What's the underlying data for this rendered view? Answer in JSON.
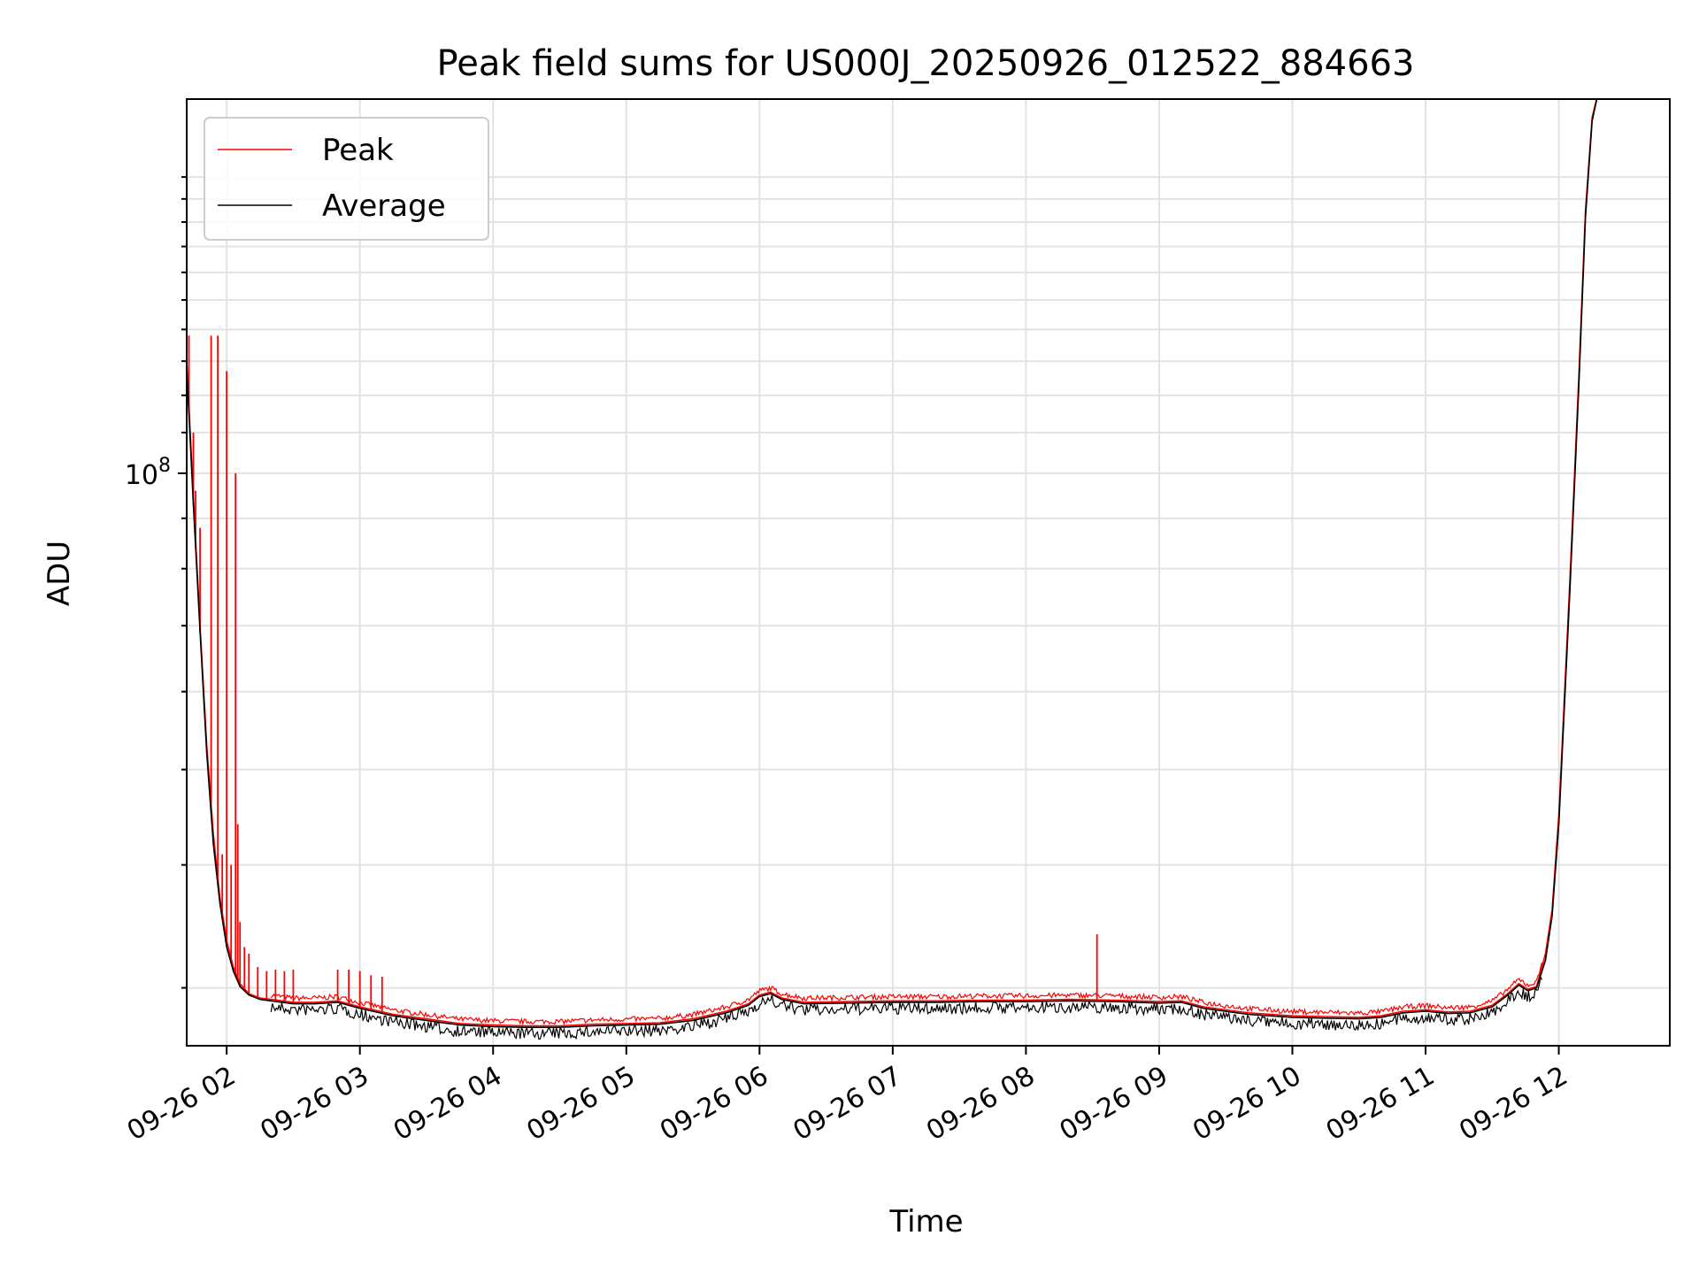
{
  "chart_data": {
    "type": "line",
    "title": "Peak field sums for US000J_20250926_012522_884663",
    "xlabel": "Time",
    "ylabel": "ADU",
    "yscale": "log",
    "grid": true,
    "legend_position": "top-left",
    "x_ticks": [
      "09-26 02",
      "09-26 03",
      "09-26 04",
      "09-26 05",
      "09-26 06",
      "09-26 07",
      "09-26 08",
      "09-26 09",
      "09-26 10",
      "09-26 11",
      "09-26 12"
    ],
    "y_ticks": [
      {
        "value": 100000000,
        "base": "10",
        "exp": "8"
      }
    ],
    "xlim": [
      "09-26 01:42",
      "09-26 12:50"
    ],
    "ylim": [
      26200000,
      240000000
    ],
    "series": [
      {
        "name": "Peak",
        "color": "#ff0000",
        "points": [
          [
            "09-26 01:42",
            130000000
          ],
          [
            "09-26 01:45",
            95000000
          ],
          [
            "09-26 01:48",
            70000000
          ],
          [
            "09-26 01:51",
            53000000
          ],
          [
            "09-26 01:54",
            43000000
          ],
          [
            "09-26 01:57",
            37000000
          ],
          [
            "09-26 02:00",
            33500000
          ],
          [
            "09-26 02:03",
            31500000
          ],
          [
            "09-26 02:06",
            30300000
          ],
          [
            "09-26 02:10",
            29600000
          ],
          [
            "09-26 02:15",
            29300000
          ],
          [
            "09-26 02:20",
            29200000
          ],
          [
            "09-26 02:30",
            29000000
          ],
          [
            "09-26 02:40",
            29000000
          ],
          [
            "09-26 02:50",
            29100000
          ],
          [
            "09-26 03:00",
            28700000
          ],
          [
            "09-26 03:15",
            28200000
          ],
          [
            "09-26 03:30",
            27900000
          ],
          [
            "09-26 03:45",
            27600000
          ],
          [
            "09-26 04:00",
            27500000
          ],
          [
            "09-26 04:15",
            27450000
          ],
          [
            "09-26 04:30",
            27450000
          ],
          [
            "09-26 04:45",
            27550000
          ],
          [
            "09-26 05:00",
            27600000
          ],
          [
            "09-26 05:15",
            27650000
          ],
          [
            "09-26 05:30",
            27900000
          ],
          [
            "09-26 05:45",
            28400000
          ],
          [
            "09-26 05:55",
            28900000
          ],
          [
            "09-26 06:00",
            29500000
          ],
          [
            "09-26 06:05",
            29700000
          ],
          [
            "09-26 06:10",
            29300000
          ],
          [
            "09-26 06:20",
            29000000
          ],
          [
            "09-26 06:40",
            29050000
          ],
          [
            "09-26 07:00",
            29100000
          ],
          [
            "09-26 07:20",
            29100000
          ],
          [
            "09-26 07:40",
            29150000
          ],
          [
            "09-26 08:00",
            29150000
          ],
          [
            "09-26 08:20",
            29200000
          ],
          [
            "09-26 08:40",
            29150000
          ],
          [
            "09-26 09:00",
            29050000
          ],
          [
            "09-26 09:10",
            29100000
          ],
          [
            "09-26 09:20",
            28700000
          ],
          [
            "09-26 09:40",
            28300000
          ],
          [
            "09-26 10:00",
            28100000
          ],
          [
            "09-26 10:15",
            28050000
          ],
          [
            "09-26 10:30",
            28000000
          ],
          [
            "09-26 10:40",
            28100000
          ],
          [
            "09-26 10:50",
            28400000
          ],
          [
            "09-26 11:00",
            28500000
          ],
          [
            "09-26 11:10",
            28350000
          ],
          [
            "09-26 11:20",
            28400000
          ],
          [
            "09-26 11:30",
            28800000
          ],
          [
            "09-26 11:37",
            29600000
          ],
          [
            "09-26 11:42",
            30300000
          ],
          [
            "09-26 11:46",
            29900000
          ],
          [
            "09-26 11:50",
            30100000
          ],
          [
            "09-26 11:54",
            32500000
          ],
          [
            "09-26 11:57",
            36000000
          ],
          [
            "09-26 12:00",
            45000000
          ],
          [
            "09-26 12:05",
            78000000
          ],
          [
            "09-26 12:09",
            125000000
          ],
          [
            "09-26 12:12",
            185000000
          ],
          [
            "09-26 12:15",
            230000000
          ],
          [
            "09-26 12:18",
            245000000
          ]
        ],
        "spikes": [
          [
            "09-26 01:43",
            138000000
          ],
          [
            "09-26 01:45",
            110000000
          ],
          [
            "09-26 01:46",
            96000000
          ],
          [
            "09-26 01:48",
            88000000
          ],
          [
            "09-26 01:53",
            138000000
          ],
          [
            "09-26 01:56",
            138000000
          ],
          [
            "09-26 01:58",
            41000000
          ],
          [
            "09-26 02:00",
            127000000
          ],
          [
            "09-26 02:02",
            40000000
          ],
          [
            "09-26 02:04",
            100000000
          ],
          [
            "09-26 02:05",
            44000000
          ],
          [
            "09-26 02:06",
            35000000
          ],
          [
            "09-26 02:08",
            33000000
          ],
          [
            "09-26 02:10",
            32500000
          ],
          [
            "09-26 02:14",
            31500000
          ],
          [
            "09-26 02:18",
            31200000
          ],
          [
            "09-26 02:22",
            31300000
          ],
          [
            "09-26 02:26",
            31200000
          ],
          [
            "09-26 02:30",
            31300000
          ],
          [
            "09-26 02:50",
            31300000
          ],
          [
            "09-26 02:55",
            31300000
          ],
          [
            "09-26 03:00",
            31200000
          ],
          [
            "09-26 03:05",
            30900000
          ],
          [
            "09-26 03:10",
            30800000
          ],
          [
            "09-26 08:32",
            34000000
          ]
        ]
      },
      {
        "name": "Average",
        "color": "#000000",
        "points": [
          [
            "09-26 01:42",
            128000000
          ],
          [
            "09-26 01:45",
            93000000
          ],
          [
            "09-26 01:48",
            69000000
          ],
          [
            "09-26 01:51",
            52000000
          ],
          [
            "09-26 01:54",
            42000000
          ],
          [
            "09-26 01:57",
            36500000
          ],
          [
            "09-26 02:00",
            33000000
          ],
          [
            "09-26 02:03",
            31200000
          ],
          [
            "09-26 02:06",
            30100000
          ],
          [
            "09-26 02:10",
            29500000
          ],
          [
            "09-26 02:15",
            29200000
          ],
          [
            "09-26 02:20",
            29100000
          ],
          [
            "09-26 02:30",
            28900000
          ],
          [
            "09-26 02:40",
            28900000
          ],
          [
            "09-26 02:50",
            29000000
          ],
          [
            "09-26 03:00",
            28600000
          ],
          [
            "09-26 03:15",
            28100000
          ],
          [
            "09-26 03:30",
            27800000
          ],
          [
            "09-26 03:45",
            27500000
          ],
          [
            "09-26 04:00",
            27400000
          ],
          [
            "09-26 04:15",
            27350000
          ],
          [
            "09-26 04:30",
            27350000
          ],
          [
            "09-26 04:45",
            27450000
          ],
          [
            "09-26 05:00",
            27500000
          ],
          [
            "09-26 05:15",
            27550000
          ],
          [
            "09-26 05:30",
            27800000
          ],
          [
            "09-26 05:45",
            28300000
          ],
          [
            "09-26 05:55",
            28800000
          ],
          [
            "09-26 06:00",
            29400000
          ],
          [
            "09-26 06:05",
            29600000
          ],
          [
            "09-26 06:10",
            29200000
          ],
          [
            "09-26 06:20",
            28900000
          ],
          [
            "09-26 06:40",
            28950000
          ],
          [
            "09-26 07:00",
            29000000
          ],
          [
            "09-26 07:20",
            29000000
          ],
          [
            "09-26 07:40",
            29050000
          ],
          [
            "09-26 08:00",
            29050000
          ],
          [
            "09-26 08:20",
            29100000
          ],
          [
            "09-26 08:40",
            29050000
          ],
          [
            "09-26 09:00",
            28950000
          ],
          [
            "09-26 09:10",
            29000000
          ],
          [
            "09-26 09:20",
            28600000
          ],
          [
            "09-26 09:40",
            28200000
          ],
          [
            "09-26 10:00",
            28000000
          ],
          [
            "09-26 10:15",
            27950000
          ],
          [
            "09-26 10:30",
            27900000
          ],
          [
            "09-26 10:40",
            28000000
          ],
          [
            "09-26 10:50",
            28300000
          ],
          [
            "09-26 11:00",
            28400000
          ],
          [
            "09-26 11:10",
            28250000
          ],
          [
            "09-26 11:20",
            28300000
          ],
          [
            "09-26 11:30",
            28700000
          ],
          [
            "09-26 11:37",
            29500000
          ],
          [
            "09-26 11:42",
            30200000
          ],
          [
            "09-26 11:46",
            29800000
          ],
          [
            "09-26 11:50",
            30000000
          ],
          [
            "09-26 11:54",
            32000000
          ],
          [
            "09-26 11:57",
            35500000
          ],
          [
            "09-26 12:00",
            44000000
          ],
          [
            "09-26 12:05",
            76000000
          ],
          [
            "09-26 12:09",
            122000000
          ],
          [
            "09-26 12:12",
            182000000
          ],
          [
            "09-26 12:15",
            228000000
          ],
          [
            "09-26 12:18",
            245000000
          ]
        ]
      }
    ]
  }
}
